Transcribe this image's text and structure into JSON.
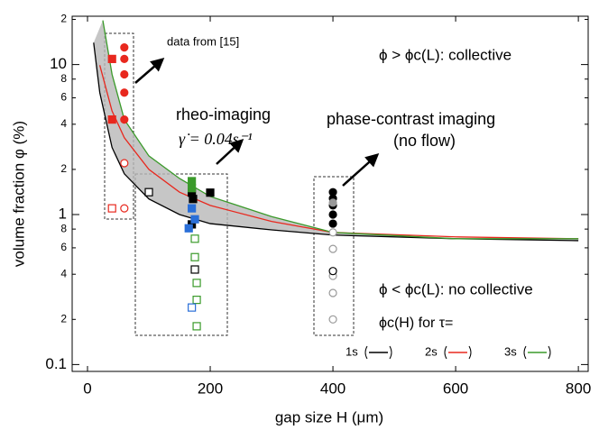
{
  "chart_data": {
    "type": "scatter",
    "xlabel": "gap size H (μm)",
    "ylabel": "volume fraction φ (%)",
    "xlim": [
      -25,
      816
    ],
    "ylim": [
      0.09,
      21
    ],
    "log_y": true,
    "xticks": [
      0,
      200,
      400,
      600,
      800
    ],
    "yticks": [
      {
        "value": 0.1,
        "label": "0.1"
      },
      {
        "value": 0.2,
        "label": "2"
      },
      {
        "value": 0.4,
        "label": "4"
      },
      {
        "value": 0.6,
        "label": "6"
      },
      {
        "value": 0.8,
        "label": "8"
      },
      1,
      2,
      4,
      6,
      8,
      10,
      {
        "value": 20,
        "label": "2"
      }
    ],
    "annotations": [
      "data from [15]",
      "ϕ > ϕc(L): collective",
      "rheo-imaging",
      "γ̇ = 0.04s⁻¹",
      "phase-contrast imaging",
      "(no flow)",
      "ϕ < ϕc(L): no collective"
    ],
    "legend_title": "ϕc(H) for τ=",
    "shade_between": [
      0,
      2
    ],
    "series": [
      {
        "name": "1s",
        "kind": "line",
        "color": "#000000",
        "x": [
          10,
          20,
          40,
          60,
          100,
          150,
          200,
          300,
          400,
          600,
          800
        ],
        "values": [
          14,
          6.5,
          2.8,
          1.87,
          1.27,
          1.0,
          0.87,
          0.79,
          0.73,
          0.69,
          0.67
        ]
      },
      {
        "name": "2s",
        "kind": "line",
        "color": "#e8281e",
        "x": [
          20,
          40,
          60,
          100,
          150,
          200,
          300,
          400,
          600,
          800
        ],
        "values": [
          9.9,
          4.9,
          3.25,
          2.0,
          1.41,
          1.15,
          0.9,
          0.76,
          0.71,
          0.69
        ]
      },
      {
        "name": "3s",
        "kind": "line",
        "color": "#3a9a2a",
        "x": [
          25,
          40,
          60,
          100,
          150,
          200,
          300,
          400,
          600,
          800
        ],
        "values": [
          19.7,
          8.6,
          4.3,
          2.46,
          1.74,
          1.32,
          0.97,
          0.76,
          0.69,
          0.69
        ]
      },
      {
        "kind": "scatter",
        "marker": "circle",
        "filled": true,
        "color": "#e8281e",
        "x": [
          60,
          60,
          60,
          60,
          60
        ],
        "values": [
          13,
          10.9,
          8.6,
          6.5,
          4.3
        ]
      },
      {
        "kind": "scatter",
        "marker": "square",
        "filled": true,
        "color": "#e8281e",
        "x": [
          40,
          40
        ],
        "values": [
          10.9,
          4.3
        ]
      },
      {
        "kind": "scatter",
        "marker": "circle",
        "filled": false,
        "color": "#e8281e",
        "x": [
          60,
          60
        ],
        "values": [
          2.2,
          1.1
        ]
      },
      {
        "kind": "scatter",
        "marker": "square",
        "filled": false,
        "color": "#e8281e",
        "x": [
          40
        ],
        "values": [
          1.1
        ]
      },
      {
        "kind": "scatter",
        "marker": "square",
        "filled": false,
        "color": "#000000",
        "x": [
          100,
          175
        ],
        "values": [
          1.41,
          0.43
        ]
      },
      {
        "kind": "scatter",
        "marker": "square",
        "filled": true,
        "color": "#000000",
        "x": [
          170,
          172,
          200,
          170
        ],
        "values": [
          1.4,
          1.27,
          1.4,
          0.86
        ]
      },
      {
        "kind": "scatter",
        "marker": "square",
        "filled": true,
        "color": "#3a9a2a",
        "x": [
          170,
          170
        ],
        "values": [
          1.67,
          1.5
        ]
      },
      {
        "kind": "scatter",
        "marker": "square",
        "filled": true,
        "color": "#2a6fd8",
        "x": [
          170,
          175,
          165
        ],
        "values": [
          1.1,
          0.93,
          0.81
        ]
      },
      {
        "kind": "scatter",
        "marker": "square",
        "filled": false,
        "color": "#3a9a2a",
        "x": [
          175,
          175,
          178,
          178,
          178
        ],
        "values": [
          0.69,
          0.52,
          0.35,
          0.27,
          0.18
        ]
      },
      {
        "kind": "scatter",
        "marker": "square",
        "filled": false,
        "color": "#2a6fd8",
        "x": [
          170
        ],
        "values": [
          0.24
        ]
      },
      {
        "kind": "scatter",
        "marker": "circle",
        "filled": true,
        "color": "#000000",
        "x": [
          400,
          400,
          400,
          400,
          400
        ],
        "values": [
          1.41,
          1.28,
          1.15,
          1.0,
          0.87
        ]
      },
      {
        "kind": "scatter",
        "marker": "circle",
        "filled": true,
        "color": "#999999",
        "x": [
          400
        ],
        "values": [
          1.2
        ]
      },
      {
        "kind": "scatter",
        "marker": "circle",
        "filled": false,
        "color": "#999999",
        "x": [
          400,
          400,
          400,
          400,
          400
        ],
        "values": [
          0.76,
          0.59,
          0.39,
          0.3,
          0.2
        ]
      },
      {
        "kind": "scatter",
        "marker": "circle",
        "filled": false,
        "color": "#000000",
        "x": [
          400
        ],
        "values": [
          0.42
        ]
      }
    ]
  }
}
